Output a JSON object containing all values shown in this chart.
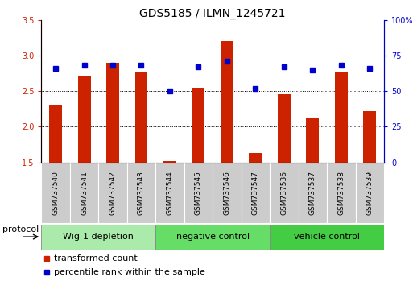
{
  "title": "GDS5185 / ILMN_1245721",
  "samples": [
    "GSM737540",
    "GSM737541",
    "GSM737542",
    "GSM737543",
    "GSM737544",
    "GSM737545",
    "GSM737546",
    "GSM737547",
    "GSM737536",
    "GSM737537",
    "GSM737538",
    "GSM737539"
  ],
  "transformed_counts": [
    2.3,
    2.72,
    2.9,
    2.77,
    1.52,
    2.55,
    3.2,
    1.63,
    2.46,
    2.12,
    2.77,
    2.22
  ],
  "percentile_ranks": [
    66,
    68,
    68,
    68,
    50,
    67,
    71,
    52,
    67,
    65,
    68,
    66
  ],
  "group_configs": [
    {
      "start": 0,
      "end": 3,
      "color": "#aaeaaa",
      "label": "Wig-1 depletion"
    },
    {
      "start": 4,
      "end": 7,
      "color": "#66dd66",
      "label": "negative control"
    },
    {
      "start": 8,
      "end": 11,
      "color": "#44cc44",
      "label": "vehicle control"
    }
  ],
  "bar_color": "#cc2200",
  "dot_color": "#0000cc",
  "ylim_left": [
    1.5,
    3.5
  ],
  "ylim_right": [
    0,
    100
  ],
  "yticks_left": [
    1.5,
    2.0,
    2.5,
    3.0,
    3.5
  ],
  "yticks_right": [
    0,
    25,
    50,
    75,
    100
  ],
  "yticklabels_right": [
    "0",
    "25",
    "50",
    "75",
    "100%"
  ],
  "grid_lines": [
    2.0,
    2.5,
    3.0
  ],
  "bar_width": 0.45,
  "title_fontsize": 10,
  "tick_fontsize": 7,
  "label_fontsize": 8,
  "sample_fontsize": 6.5
}
